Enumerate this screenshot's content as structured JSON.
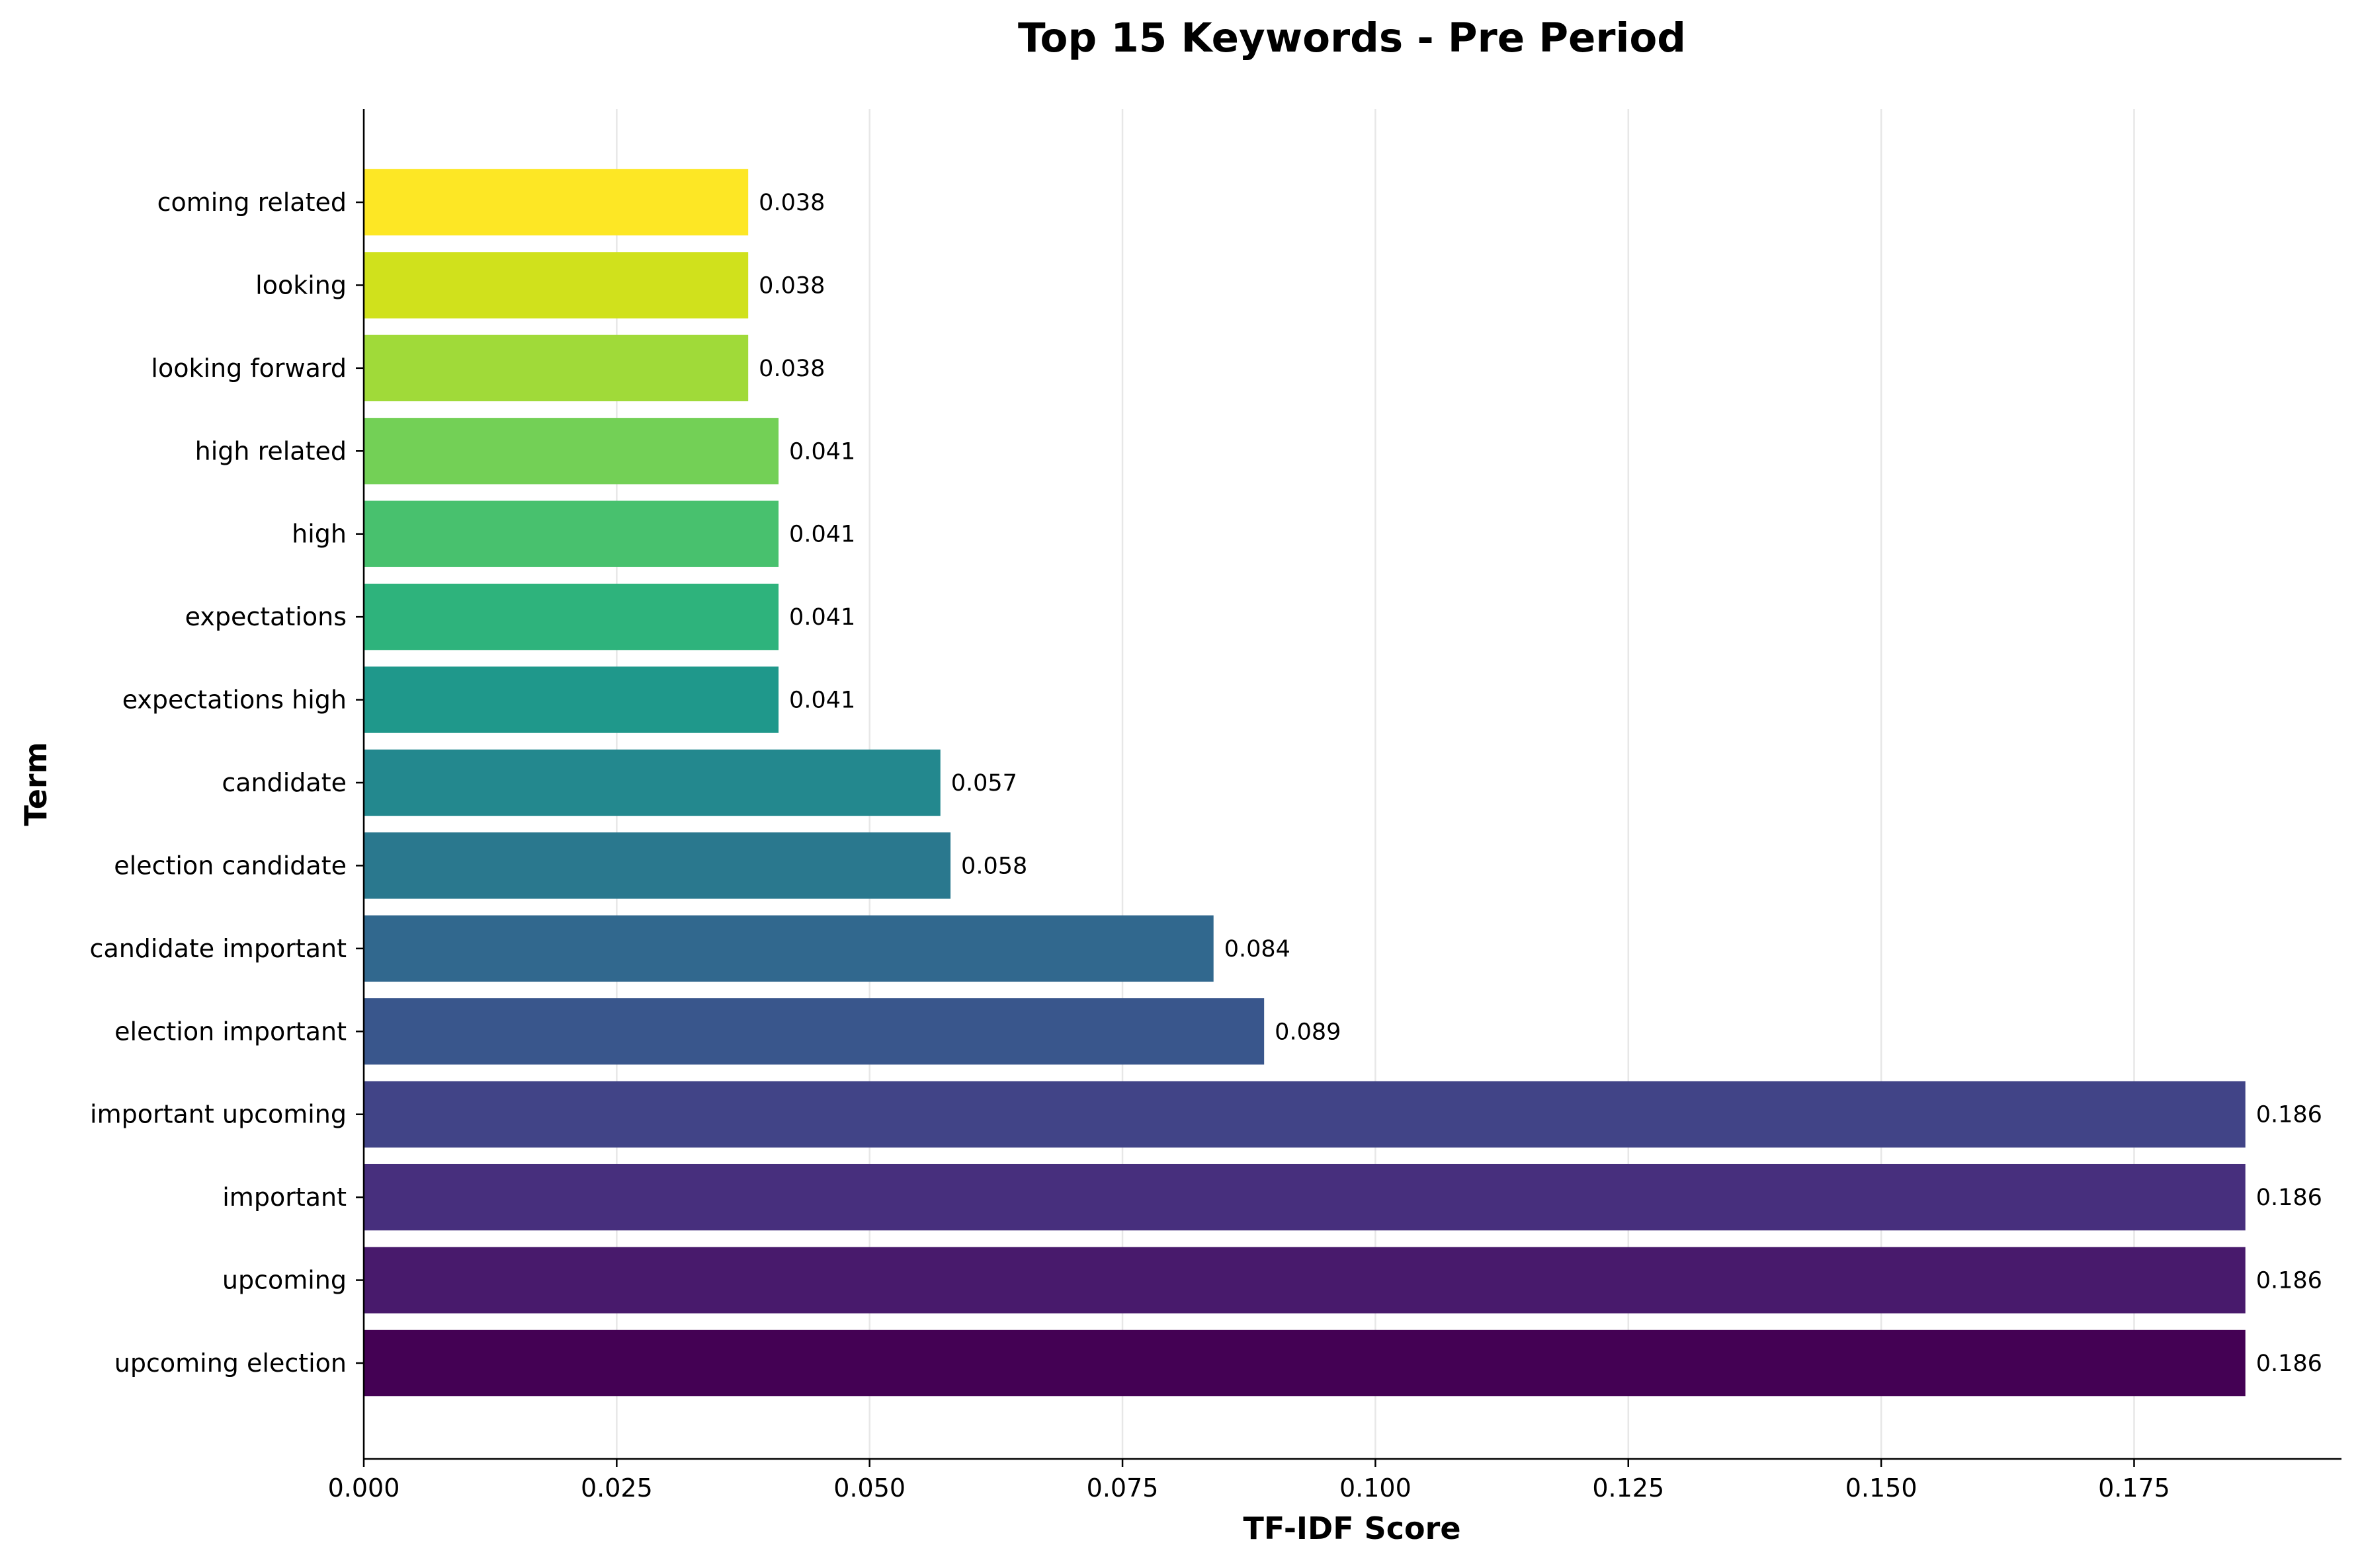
{
  "chart_data": {
    "type": "bar",
    "orientation": "horizontal",
    "title": "Top 15 Keywords - Pre Period",
    "xlabel": "TF-IDF Score",
    "ylabel": "Term",
    "categories": [
      "upcoming election",
      "upcoming",
      "important",
      "important upcoming",
      "election important",
      "candidate important",
      "election candidate",
      "candidate",
      "expectations high",
      "expectations",
      "high",
      "high related",
      "looking forward",
      "looking",
      "coming related"
    ],
    "values": [
      0.186,
      0.186,
      0.186,
      0.186,
      0.089,
      0.084,
      0.058,
      0.057,
      0.041,
      0.041,
      0.041,
      0.041,
      0.038,
      0.038,
      0.038
    ],
    "value_labels": [
      "0.186",
      "0.186",
      "0.186",
      "0.186",
      "0.089",
      "0.084",
      "0.058",
      "0.057",
      "0.041",
      "0.041",
      "0.041",
      "0.041",
      "0.038",
      "0.038",
      "0.038"
    ],
    "colors": [
      "#440154",
      "#481a6c",
      "#472f7d",
      "#414487",
      "#39568c",
      "#31688e",
      "#2a788e",
      "#23888e",
      "#1f988b",
      "#22a884",
      "#35b779",
      "#54c568",
      "#7ad151",
      "#a5db36",
      "#d2e21b",
      "#fde725"
    ],
    "bar_colors": [
      "#440154",
      "#481a6c",
      "#472f7d",
      "#414487",
      "#39568c",
      "#31688e",
      "#2a788e",
      "#23888e",
      "#1f988b",
      "#2eb37c",
      "#48c16e",
      "#73d056",
      "#a0da39",
      "#d0e11c",
      "#fde725"
    ],
    "xlim": [
      0,
      0.1955
    ],
    "xticks": [
      0.0,
      0.025,
      0.05,
      0.075,
      0.1,
      0.125,
      0.15,
      0.175
    ],
    "xtick_labels": [
      "0.000",
      "0.025",
      "0.050",
      "0.075",
      "0.100",
      "0.125",
      "0.150",
      "0.175"
    ],
    "grid": "x",
    "legend": "none"
  }
}
